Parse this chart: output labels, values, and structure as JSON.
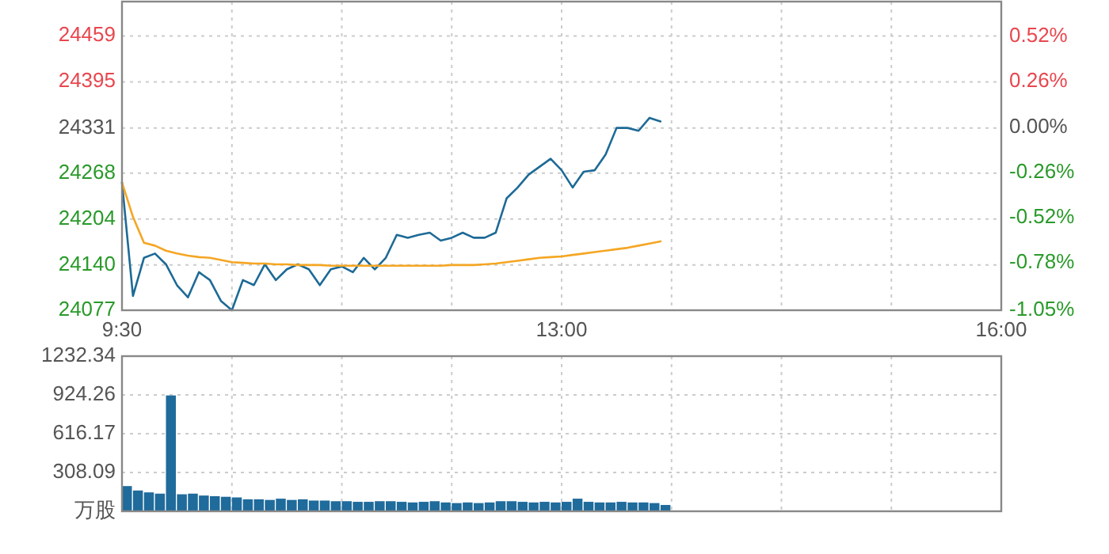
{
  "chart_data": [
    {
      "type": "line",
      "grid": true,
      "categories": [
        "9:30",
        null,
        null,
        null,
        null,
        null,
        null,
        null,
        null,
        null,
        null,
        null,
        null,
        null,
        null,
        null,
        null,
        null,
        null,
        null,
        null,
        null,
        null,
        null,
        null,
        null,
        null,
        null,
        null,
        null,
        null,
        null,
        null,
        null,
        null,
        null,
        null,
        null,
        null,
        null,
        "13:00",
        null,
        null,
        null,
        null,
        null,
        null,
        null,
        null,
        null,
        null,
        null,
        null,
        null,
        null,
        null,
        null,
        null,
        null,
        null,
        null,
        null,
        null,
        null,
        null,
        null,
        null,
        null,
        null,
        null,
        null,
        null,
        null,
        null,
        null,
        null,
        null,
        null,
        null,
        null,
        "16:00"
      ],
      "series": [
        {
          "color": "#1d6a96",
          "values": [
            24255,
            24097,
            24150,
            24156,
            24141,
            24112,
            24095,
            24130,
            24119,
            24090,
            24077,
            24119,
            24112,
            24141,
            24119,
            24134,
            24141,
            24134,
            24112,
            24134,
            24138,
            24130,
            24150,
            24134,
            24150,
            24182,
            24178,
            24182,
            24185,
            24174,
            24178,
            24185,
            24178,
            24178,
            24185,
            24233,
            24248,
            24266,
            24277,
            24288,
            24272,
            24248,
            24270,
            24272,
            24294,
            24331,
            24331,
            24327,
            24345,
            24340,
            null,
            null,
            null,
            null,
            null,
            null,
            null,
            null,
            null,
            null,
            null,
            null,
            null,
            null,
            null,
            null,
            null,
            null,
            null,
            null,
            null,
            null,
            null,
            null,
            null,
            null,
            null,
            null,
            null,
            null,
            null
          ]
        },
        {
          "color": "#f5a623",
          "values": [
            24255,
            24207,
            24171,
            24167,
            24160,
            24156,
            24153,
            24151,
            24150,
            24147,
            24144,
            24143,
            24142,
            24142,
            24141,
            24141,
            24140,
            24140,
            24140,
            24139,
            24139,
            24139,
            24139,
            24139,
            24139,
            24139,
            24139,
            24139,
            24139,
            24139,
            24140,
            24140,
            24140,
            24141,
            24142,
            24144,
            24146,
            24148,
            24150,
            24151,
            24152,
            24154,
            24156,
            24158,
            24160,
            24162,
            24164,
            24167,
            24170,
            24173,
            null,
            null,
            null,
            null,
            null,
            null,
            null,
            null,
            null,
            null,
            null,
            null,
            null,
            null,
            null,
            null,
            null,
            null,
            null,
            null,
            null,
            null,
            null,
            null,
            null,
            null,
            null,
            null,
            null,
            null,
            null
          ]
        }
      ],
      "ylim": [
        24077,
        24507
      ],
      "yticks": [
        24077,
        24140,
        24204,
        24268,
        24331,
        24395,
        24459
      ],
      "y2lim": [
        -1.05,
        0.72
      ],
      "y2ticks": [
        {
          "value": -1.05,
          "label": "-1.05%"
        },
        {
          "value": -0.78,
          "label": "-0.78%"
        },
        {
          "value": -0.52,
          "label": "-0.52%"
        },
        {
          "value": -0.26,
          "label": "-0.26%"
        },
        {
          "value": 0,
          "label": "0.00%"
        },
        {
          "value": 0.26,
          "label": "0.26%"
        },
        {
          "value": 0.52,
          "label": "0.52%"
        }
      ]
    },
    {
      "type": "bar",
      "grid": true,
      "color": "#1f6b9b",
      "categories": [
        null,
        null,
        null,
        null,
        null,
        null,
        null,
        null,
        null,
        null,
        null,
        null,
        null,
        null,
        null,
        null,
        null,
        null,
        null,
        null,
        null,
        null,
        null,
        null,
        null,
        null,
        null,
        null,
        null,
        null,
        null,
        null,
        null,
        null,
        null,
        null,
        null,
        null,
        null,
        null,
        null,
        null,
        null,
        null,
        null,
        null,
        null,
        null,
        null,
        null,
        null,
        null,
        null,
        null,
        null,
        null,
        null,
        null,
        null,
        null,
        null,
        null,
        null,
        null,
        null,
        null,
        null,
        null,
        null,
        null,
        null,
        null,
        null,
        null,
        null,
        null,
        null,
        null,
        null,
        null,
        null
      ],
      "values": [
        200,
        165,
        150,
        140,
        920,
        135,
        140,
        125,
        120,
        115,
        110,
        95,
        95,
        90,
        100,
        90,
        95,
        85,
        85,
        80,
        80,
        75,
        75,
        80,
        80,
        75,
        70,
        75,
        80,
        70,
        65,
        70,
        65,
        70,
        80,
        80,
        75,
        70,
        75,
        70,
        75,
        100,
        75,
        70,
        70,
        75,
        70,
        70,
        65,
        50,
        null,
        null,
        null,
        null,
        null,
        null,
        null,
        null,
        null,
        null,
        null,
        null,
        null,
        null,
        null,
        null,
        null,
        null,
        null,
        null,
        null,
        null,
        null,
        null,
        null,
        null,
        null,
        null,
        null,
        null,
        null
      ],
      "ylim": [
        0,
        1232.34
      ],
      "yticks": [
        {
          "value": 0,
          "label": "万股"
        },
        308.09,
        616.17,
        924.26,
        1232.34
      ]
    }
  ]
}
